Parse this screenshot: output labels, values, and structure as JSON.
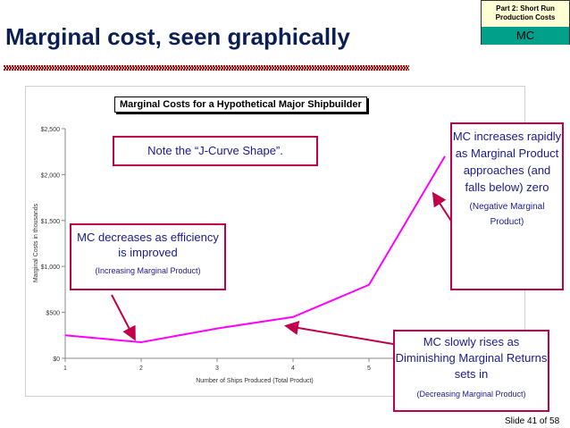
{
  "slide": {
    "title": "Marginal cost, seen graphically",
    "section_top": "Part 2: Short Run Production Costs",
    "section_label": "MC",
    "slide_number": "Slide 41 of 58"
  },
  "callouts": {
    "jcurve": "Note the “J-Curve Shape”.",
    "decrease_main": "MC decreases as efficiency is improved",
    "decrease_sub": "(Increasing Marginal Product)",
    "increase_main": "MC increases rapidly as Marginal Product approaches (and falls below) zero",
    "increase_sub": "(Negative Marginal Product)",
    "rises_main": "MC slowly rises as Diminishing Marginal Returns sets in",
    "rises_sub": "(Decreasing Marginal Product)"
  },
  "colors": {
    "line": "#ff00ff",
    "callout_border": "#c0004a",
    "callout_text": "#1a1a8c",
    "arrow": "#c0004a"
  },
  "chart_data": {
    "type": "line",
    "title": "Marginal Costs for a Hypothetical Major Shipbuilder",
    "xlabel": "Number of Ships Produced (Total Product)",
    "ylabel": "Marginal Costs in thousands",
    "x": [
      1,
      2,
      3,
      4,
      5,
      6
    ],
    "series": [
      {
        "values": [
          250,
          175,
          325,
          450,
          800,
          2200
        ]
      }
    ],
    "xticks": [
      "1",
      "2",
      "3",
      "4",
      "5"
    ],
    "yticks": [
      "$0",
      "$500",
      "$1,000",
      "$1,500",
      "$2,000",
      "$2,500"
    ],
    "ylim": [
      0,
      2500
    ],
    "xlim": [
      1,
      6
    ],
    "grid": false,
    "legend": "none"
  }
}
